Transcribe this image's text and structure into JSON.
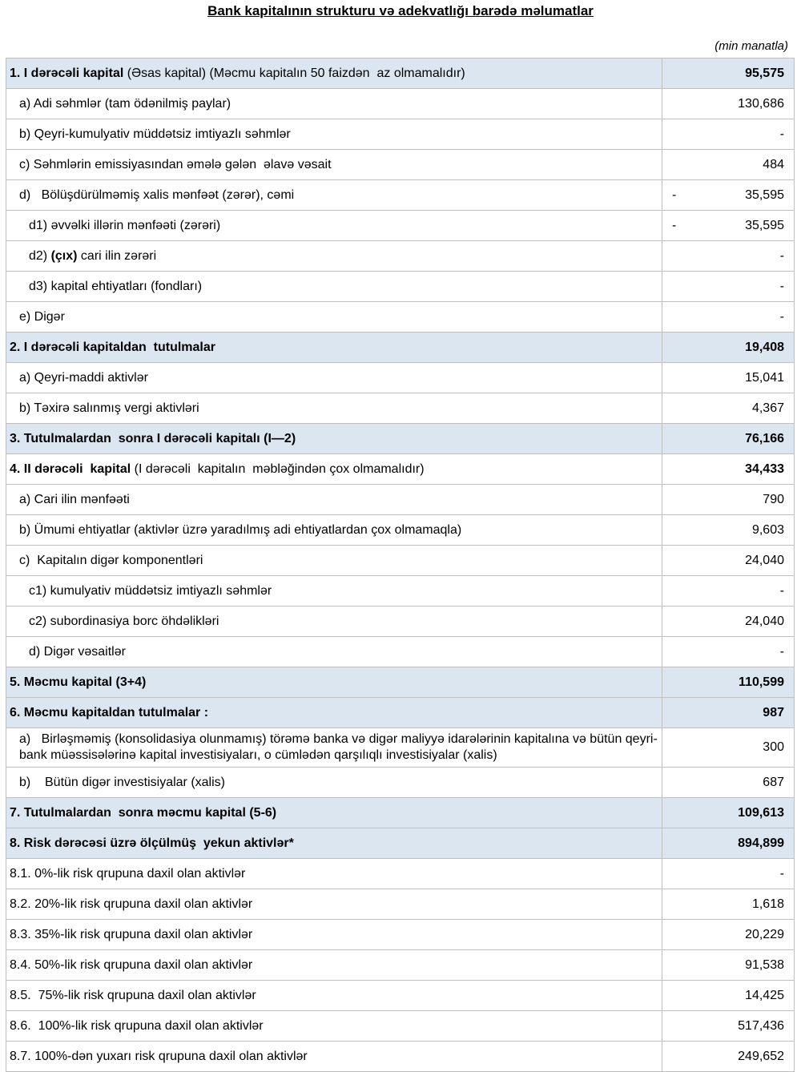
{
  "header": {
    "title": "Bank kapitalının strukturu və adekvatlığı barədə məlumatlar",
    "unit": "(min manatla)"
  },
  "table": {
    "rows": [
      {
        "parts": [
          {
            "text": "1. I dərəcəli kapital",
            "bold": true
          },
          {
            "text": " (Əsas kapital) (Məcmu kapitalın 50 faizdən  az olmamalıdır)",
            "bold": false
          }
        ],
        "value": "95,575",
        "level": 0,
        "highlight": true
      },
      {
        "parts": [
          {
            "text": "a) Adi səhmlər (tam ödənilmiş paylar)",
            "bold": false
          }
        ],
        "value": "130,686",
        "level": 1,
        "highlight": false
      },
      {
        "parts": [
          {
            "text": "b) Qeyri-kumulyativ müddətsiz imtiyazlı səhmlər",
            "bold": false
          }
        ],
        "value": "-",
        "level": 1,
        "highlight": false
      },
      {
        "parts": [
          {
            "text": "c) Səhmlərin emissiyasından əmələ gələn  əlavə vəsait",
            "bold": false
          }
        ],
        "value": "484",
        "level": 1,
        "highlight": false
      },
      {
        "parts": [
          {
            "text": "d)   Bölüşdürülməmiş xalis mənfəət (zərər), cəmi",
            "bold": false
          }
        ],
        "sign": "-",
        "value": "35,595",
        "level": 1,
        "highlight": false
      },
      {
        "parts": [
          {
            "text": "d1) əvvəlki illərin mənfəəti (zərəri)",
            "bold": false
          }
        ],
        "sign": "-",
        "value": "35,595",
        "level": 2,
        "highlight": false
      },
      {
        "parts": [
          {
            "text": "d2) ",
            "bold": false
          },
          {
            "text": "(çıx)",
            "bold": true
          },
          {
            "text": " cari ilin zərəri",
            "bold": false
          }
        ],
        "value": "-",
        "level": 2,
        "highlight": false
      },
      {
        "parts": [
          {
            "text": "d3) kapital ehtiyatları (fondları)",
            "bold": false
          }
        ],
        "value": "-",
        "level": 2,
        "highlight": false
      },
      {
        "parts": [
          {
            "text": "e) Digər",
            "bold": false
          }
        ],
        "value": "-",
        "level": 1,
        "highlight": false
      },
      {
        "parts": [
          {
            "text": "2. I dərəcəli kapitaldan  tutulmalar",
            "bold": true
          }
        ],
        "value": "19,408",
        "level": 0,
        "highlight": true
      },
      {
        "parts": [
          {
            "text": "a) Qeyri-maddi aktivlər",
            "bold": false
          }
        ],
        "value": "15,041",
        "level": 1,
        "highlight": false
      },
      {
        "parts": [
          {
            "text": "b) Təxirə salınmış vergi aktivləri",
            "bold": false
          }
        ],
        "value": "4,367",
        "level": 1,
        "highlight": false
      },
      {
        "parts": [
          {
            "text": "3. Tutulmalardan  sonra I dərəcəli kapitalı (I—2)",
            "bold": true
          }
        ],
        "value": "76,166",
        "level": 0,
        "highlight": true
      },
      {
        "parts": [
          {
            "text": "4. II dərəcəli  kapital",
            "bold": true
          },
          {
            "text": " (I dərəcəli  kapitalın  məbləğindən çox olmamalıdır)",
            "bold": false
          }
        ],
        "value": "34,433",
        "level": 0,
        "highlight": false,
        "value_bold": true
      },
      {
        "parts": [
          {
            "text": "a) Cari ilin mənfəəti",
            "bold": false
          }
        ],
        "value": "790",
        "level": 1,
        "highlight": false
      },
      {
        "parts": [
          {
            "text": "b) Ümumi ehtiyatlar (aktivlər üzrə yaradılmış adi ehtiyatlardan çox olmamaqla)",
            "bold": false
          }
        ],
        "value": "9,603",
        "level": 1,
        "highlight": false
      },
      {
        "parts": [
          {
            "text": "c)  Kapitalın digər komponentləri",
            "bold": false
          }
        ],
        "value": "24,040",
        "level": 1,
        "highlight": false
      },
      {
        "parts": [
          {
            "text": "c1) kumulyativ müddətsiz imtiyazlı səhmlər",
            "bold": false
          }
        ],
        "value": "-",
        "level": 2,
        "highlight": false
      },
      {
        "parts": [
          {
            "text": "c2) subordinasiya borc öhdəlikləri",
            "bold": false
          }
        ],
        "value": "24,040",
        "level": 2,
        "highlight": false
      },
      {
        "parts": [
          {
            "text": "d) Digər vəsaitlər",
            "bold": false
          }
        ],
        "value": "-",
        "level": 2,
        "highlight": false
      },
      {
        "parts": [
          {
            "text": "5. Məcmu kapital (3+4)",
            "bold": true
          }
        ],
        "value": "110,599",
        "level": 0,
        "highlight": true
      },
      {
        "parts": [
          {
            "text": "6. Məcmu kapitaldan tutulmalar :",
            "bold": true
          }
        ],
        "value": "987",
        "level": 0,
        "highlight": true
      },
      {
        "parts": [
          {
            "text": "a)   Birləşməmiş (konsolidasiya olunmamış) törəmə banka və digər maliyyə idarələrinin kapitalına və bütün qeyri-bank müəssisələrinə kapital investisiyaları, o cümlədən qarşılıqlı investisiyalar (xalis)",
            "bold": false
          }
        ],
        "value": "300",
        "level": 1,
        "highlight": false
      },
      {
        "parts": [
          {
            "text": "b)    Bütün digər investisiyalar (xalis)",
            "bold": false
          }
        ],
        "value": "687",
        "level": 1,
        "highlight": false
      },
      {
        "parts": [
          {
            "text": "7. Tutulmalardan  sonra məcmu kapital (5-6)",
            "bold": true
          }
        ],
        "value": "109,613",
        "level": 0,
        "highlight": true
      },
      {
        "parts": [
          {
            "text": "8. Risk dərəcəsi üzrə ölçülmüş  yekun aktivlər*",
            "bold": true
          }
        ],
        "value": "894,899",
        "level": 0,
        "highlight": true
      },
      {
        "parts": [
          {
            "text": "8.1. 0%-lik risk qrupuna daxil olan aktivlər",
            "bold": false
          }
        ],
        "value": "-",
        "level": 0,
        "highlight": false
      },
      {
        "parts": [
          {
            "text": "8.2. 20%-lik risk qrupuna daxil olan aktivlər",
            "bold": false
          }
        ],
        "value": "1,618",
        "level": 0,
        "highlight": false
      },
      {
        "parts": [
          {
            "text": "8.3. 35%-lik risk qrupuna daxil olan aktivlər",
            "bold": false
          }
        ],
        "value": "20,229",
        "level": 0,
        "highlight": false
      },
      {
        "parts": [
          {
            "text": "8.4. 50%-lik risk qrupuna daxil olan aktivlər",
            "bold": false
          }
        ],
        "value": "91,538",
        "level": 0,
        "highlight": false
      },
      {
        "parts": [
          {
            "text": "8.5.  75%-lik risk qrupuna daxil olan aktivlər",
            "bold": false
          }
        ],
        "value": "14,425",
        "level": 0,
        "highlight": false
      },
      {
        "parts": [
          {
            "text": "8.6.  100%-lik risk qrupuna daxil olan aktivlər",
            "bold": false
          }
        ],
        "value": "517,436",
        "level": 0,
        "highlight": false
      },
      {
        "parts": [
          {
            "text": "8.7. 100%-dən yuxarı risk qrupuna daxil olan aktivlər",
            "bold": false
          }
        ],
        "value": "249,652",
        "level": 0,
        "highlight": false
      }
    ]
  }
}
